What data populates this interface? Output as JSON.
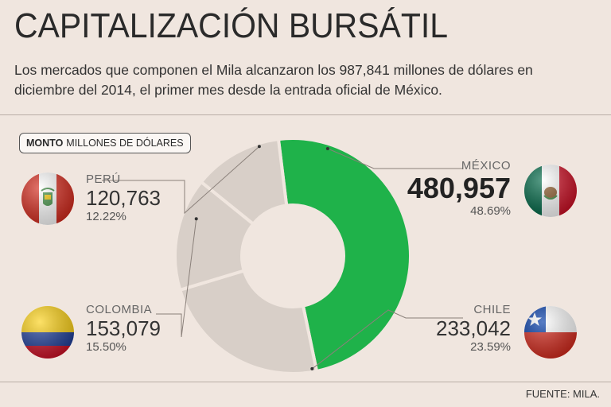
{
  "header": {
    "title": "CAPITALIZACIÓN BURSÁTIL",
    "subtitle": "Los mercados que componen el Mila alcanzaron los 987,841 millones de dólares en diciembre del 2014, el primer mes desde la entrada oficial de México."
  },
  "badge": {
    "bold": "MONTO",
    "rest": "MILLONES DE DÓLARES"
  },
  "source": "FUENTE: MILA.",
  "colors": {
    "highlight": "#1fb24a",
    "slice": "#d8cfc8",
    "background": "#f0e6df"
  },
  "chart_data": {
    "type": "pie",
    "donut": true,
    "unit": "millones de dólares",
    "total": 987841,
    "slices": [
      {
        "name": "MÉXICO",
        "value": 480957,
        "value_label": "480,957",
        "percent": "48.69%",
        "highlight": true,
        "flag_icon": "mexico-flag-icon"
      },
      {
        "name": "CHILE",
        "value": 233042,
        "value_label": "233,042",
        "percent": "23.59%",
        "highlight": false,
        "flag_icon": "chile-flag-icon"
      },
      {
        "name": "COLOMBIA",
        "value": 153079,
        "value_label": "153,079",
        "percent": "15.50%",
        "highlight": false,
        "flag_icon": "colombia-flag-icon"
      },
      {
        "name": "PERÚ",
        "value": 120763,
        "value_label": "120,763",
        "percent": "12.22%",
        "highlight": false,
        "flag_icon": "peru-flag-icon"
      }
    ]
  }
}
